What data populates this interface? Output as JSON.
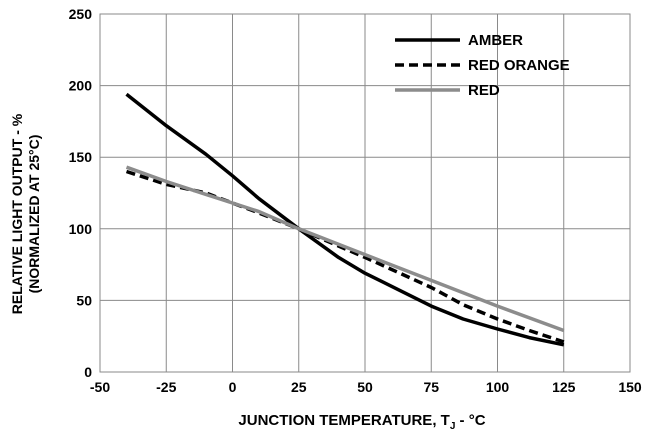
{
  "chart_data": {
    "type": "line",
    "xlabel_main": "JUNCTION TEMPERATURE, T",
    "xlabel_sub": "J",
    "xlabel_tail": " - °C",
    "ylabel_line1": "RELATIVE LIGHT OUTPUT - %",
    "ylabel_line2": "(NORMALIZED AT 25°C)",
    "xlim": [
      -50,
      150
    ],
    "ylim": [
      0,
      250
    ],
    "x_ticks": [
      -50,
      -25,
      0,
      25,
      50,
      75,
      100,
      125,
      150
    ],
    "y_ticks": [
      0,
      50,
      100,
      150,
      200,
      250
    ],
    "grid": true,
    "legend_position": "top-right",
    "series": [
      {
        "name": "AMBER",
        "color": "#000000",
        "dash": "solid",
        "x": [
          -40,
          -25,
          -10,
          0,
          10,
          25,
          40,
          50,
          62,
          75,
          87,
          100,
          112,
          125
        ],
        "y": [
          194,
          172,
          152,
          137,
          121,
          100,
          80,
          69,
          58,
          46,
          37,
          30,
          24,
          19
        ]
      },
      {
        "name": "RED ORANGE",
        "color": "#000000",
        "dash": "dashed",
        "x": [
          -40,
          -25,
          -10,
          0,
          10,
          25,
          40,
          50,
          62,
          75,
          87,
          100,
          112,
          125
        ],
        "y": [
          140,
          131,
          125,
          118,
          111,
          100,
          88,
          80,
          70,
          59,
          47,
          37,
          29,
          21
        ]
      },
      {
        "name": "RED",
        "color": "#8c8c8c",
        "dash": "solid",
        "x": [
          -40,
          -25,
          -10,
          0,
          10,
          25,
          50,
          75,
          100,
          125
        ],
        "y": [
          143,
          133,
          124,
          118,
          112,
          100,
          82,
          64,
          46,
          29
        ]
      }
    ]
  }
}
